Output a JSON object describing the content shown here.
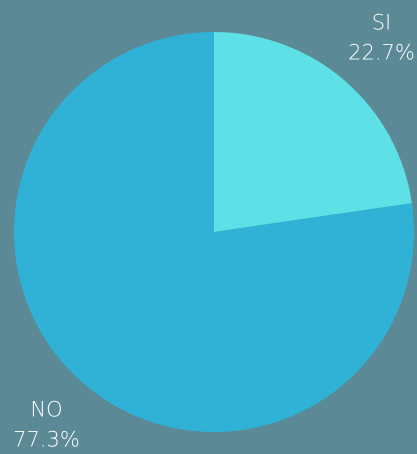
{
  "chart_data": {
    "type": "pie",
    "categories": [
      "SI",
      "NO"
    ],
    "values": [
      22.7,
      77.3
    ],
    "value_labels": [
      "22.7%",
      "77.3%"
    ],
    "colors": [
      "#5de0e6",
      "#2fb2d5"
    ]
  }
}
